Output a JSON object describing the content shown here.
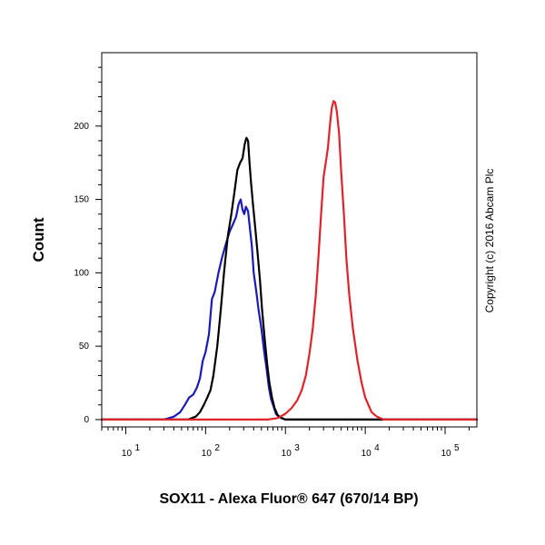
{
  "chart_data": {
    "type": "line",
    "xscale": "log",
    "xlabel": "SOX11 - Alexa Fluor® 647 (670/14 BP)",
    "ylabel": "Count",
    "xlim": [
      5,
      250000
    ],
    "ylim": [
      -5,
      250
    ],
    "ylim_visible": [
      0,
      240
    ],
    "xticks": [
      {
        "base": "10",
        "exp": "1",
        "value": 10
      },
      {
        "base": "10",
        "exp": "2",
        "value": 100
      },
      {
        "base": "10",
        "exp": "3",
        "value": 1000
      },
      {
        "base": "10",
        "exp": "4",
        "value": 10000
      },
      {
        "base": "10",
        "exp": "5",
        "value": 100000
      }
    ],
    "yticks": [
      0,
      50,
      100,
      150,
      200
    ],
    "grid": false,
    "copyright": "Copyright (c) 2016 Abcam Plc",
    "series": [
      {
        "color": "#1a1ab8",
        "x": [
          5,
          30,
          40,
          48,
          55,
          62,
          70,
          78,
          85,
          92,
          100,
          110,
          120,
          130,
          145,
          160,
          180,
          200,
          220,
          240,
          260,
          275,
          290,
          305,
          320,
          340,
          360,
          380,
          400,
          430,
          460,
          500,
          540,
          580,
          620,
          660,
          700,
          760,
          820,
          900,
          1000,
          1200,
          10000,
          250000
        ],
        "y": [
          0,
          0,
          2,
          5,
          10,
          15,
          17,
          22,
          28,
          40,
          46,
          58,
          82,
          87,
          100,
          110,
          120,
          128,
          133,
          138,
          147,
          150,
          143,
          140,
          145,
          142,
          130,
          118,
          100,
          88,
          75,
          62,
          47,
          35,
          22,
          14,
          10,
          4,
          2,
          1,
          0,
          0,
          0,
          0
        ]
      },
      {
        "color": "#000000",
        "x": [
          5,
          60,
          75,
          85,
          95,
          105,
          115,
          125,
          140,
          155,
          170,
          190,
          210,
          230,
          250,
          270,
          290,
          310,
          325,
          340,
          355,
          370,
          390,
          420,
          450,
          480,
          510,
          550,
          590,
          630,
          680,
          730,
          800,
          900,
          1000,
          1200,
          10000,
          250000
        ],
        "y": [
          0,
          0,
          2,
          5,
          10,
          15,
          20,
          30,
          50,
          75,
          100,
          125,
          140,
          155,
          170,
          175,
          178,
          188,
          192,
          190,
          175,
          162,
          148,
          130,
          112,
          95,
          75,
          55,
          38,
          25,
          15,
          8,
          3,
          1,
          0,
          0,
          0,
          0
        ]
      },
      {
        "color": "#e0232a",
        "x": [
          5,
          600,
          800,
          1000,
          1200,
          1400,
          1600,
          1800,
          2000,
          2200,
          2400,
          2600,
          2800,
          3000,
          3200,
          3400,
          3600,
          3800,
          4000,
          4200,
          4400,
          4700,
          5000,
          5400,
          5800,
          6300,
          7000,
          8000,
          9000,
          10000,
          12000,
          14000,
          17000,
          25000,
          250000
        ],
        "y": [
          0,
          0,
          1,
          4,
          8,
          13,
          20,
          30,
          45,
          62,
          85,
          112,
          140,
          165,
          175,
          185,
          200,
          212,
          217,
          216,
          210,
          195,
          168,
          140,
          110,
          85,
          62,
          40,
          25,
          15,
          5,
          2,
          0,
          0,
          0
        ]
      }
    ]
  }
}
